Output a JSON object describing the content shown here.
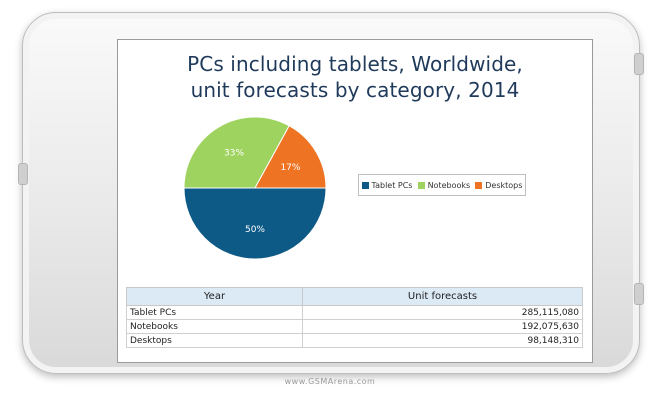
{
  "chart_data": {
    "type": "pie",
    "title": "PCs including tablets, Worldwide, unit forecasts by category, 2014",
    "title_lines": [
      "PCs including tablets, Worldwide,",
      "unit forecasts by category, 2014"
    ],
    "slices": [
      {
        "label": "Tablet PCs",
        "value": 50,
        "display": "50%",
        "color": "#0e5a87"
      },
      {
        "label": "Notebooks",
        "value": 33,
        "display": "33%",
        "color": "#9ed35f"
      },
      {
        "label": "Desktops",
        "value": 17,
        "display": "17%",
        "color": "#ee7424"
      }
    ],
    "legend_position": "right",
    "table": {
      "headers": [
        "Year",
        "Unit forecasts"
      ],
      "rows": [
        {
          "category": "Tablet PCs",
          "value": "285,115,080"
        },
        {
          "category": "Notebooks",
          "value": "192,075,630"
        },
        {
          "category": "Desktops",
          "value": "98,148,310"
        }
      ]
    }
  },
  "watermark": "www.GSMArena.com",
  "colors": {
    "title": "#1f3a5a",
    "table_header": "#dceaf6"
  }
}
